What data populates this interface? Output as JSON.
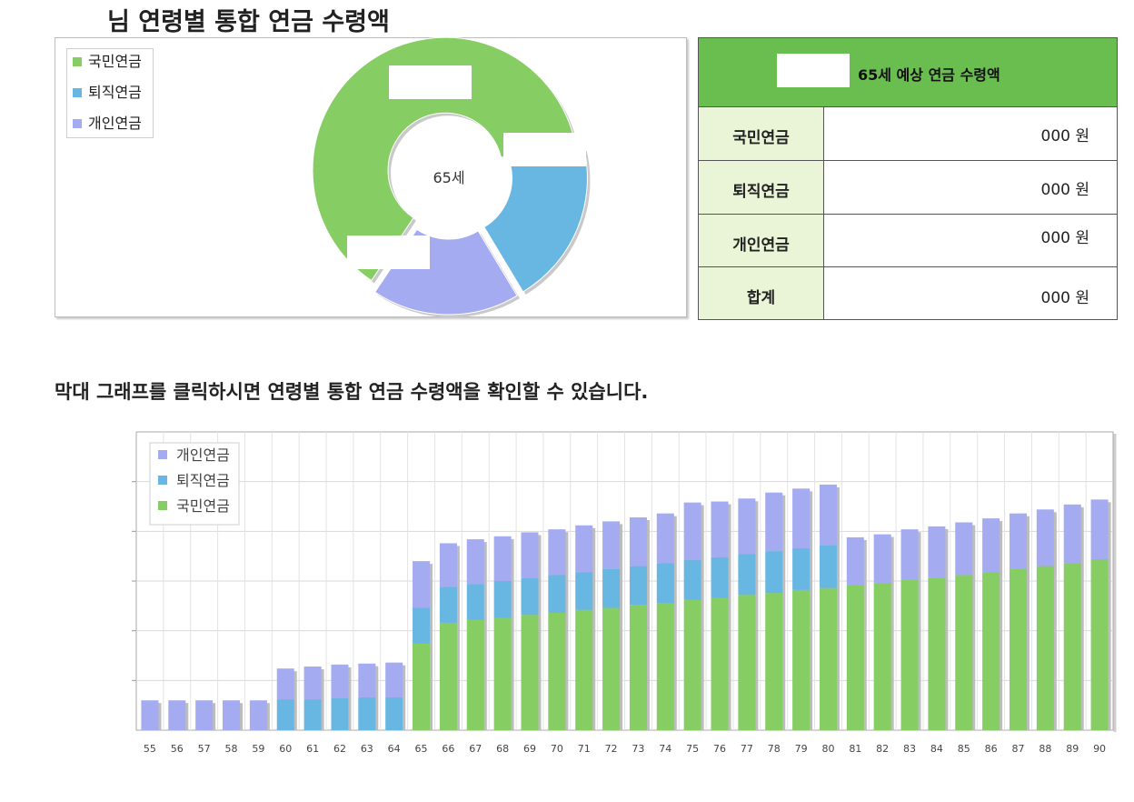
{
  "page_title": "님 연령별 통합 연금 수령액",
  "colors": {
    "national": "#86cd64",
    "retirement": "#68b6e2",
    "personal": "#a4abf1",
    "header_green": "#6abd4f",
    "label_bg": "#eaf5d8"
  },
  "donut": {
    "center_label": "65세",
    "legend": [
      "국민연금",
      "퇴직연금",
      "개인연금"
    ]
  },
  "table": {
    "header": "65세 예상 연금 수령액",
    "rows": [
      {
        "label": "국민연금",
        "value": "000 원"
      },
      {
        "label": "퇴직연금",
        "value": "000 원"
      },
      {
        "label": "개인연금",
        "value": "000 원"
      },
      {
        "label": "합계",
        "value": "000 원"
      }
    ]
  },
  "bar_caption": "막대 그래프를 클릭하시면 연령별 통합 연금 수령액을 확인할 수 있습니다.",
  "chart_data": [
    {
      "type": "pie",
      "categories": [
        "국민연금",
        "퇴직연금",
        "개인연금"
      ],
      "values": [
        62,
        20,
        18
      ],
      "center_label": "65세"
    },
    {
      "type": "bar",
      "stacked": true,
      "categories": [
        "55",
        "56",
        "57",
        "58",
        "59",
        "60",
        "61",
        "62",
        "63",
        "64",
        "65",
        "66",
        "67",
        "68",
        "69",
        "70",
        "71",
        "72",
        "73",
        "74",
        "75",
        "76",
        "77",
        "78",
        "79",
        "80",
        "81",
        "82",
        "83",
        "84",
        "85",
        "86",
        "87",
        "88",
        "89",
        "90"
      ],
      "series": [
        {
          "name": "국민연금",
          "values": [
            0,
            0,
            0,
            0,
            0,
            0,
            0,
            0,
            0,
            0,
            87,
            108,
            111,
            113,
            116,
            118,
            121,
            123,
            126,
            128,
            131,
            133,
            136,
            138,
            141,
            143,
            146,
            148,
            151,
            153,
            156,
            159,
            162,
            165,
            168,
            172
          ]
        },
        {
          "name": "퇴직연금",
          "values": [
            0,
            0,
            0,
            0,
            0,
            31,
            31,
            32,
            33,
            33,
            36,
            36,
            36,
            37,
            37,
            38,
            38,
            39,
            39,
            40,
            40,
            41,
            41,
            42,
            42,
            43,
            0,
            0,
            0,
            0,
            0,
            0,
            0,
            0,
            0,
            0
          ]
        },
        {
          "name": "개인연금",
          "values": [
            30,
            30,
            30,
            30,
            30,
            31,
            33,
            34,
            34,
            35,
            47,
            44,
            45,
            45,
            46,
            46,
            47,
            48,
            49,
            50,
            58,
            56,
            56,
            59,
            60,
            61,
            48,
            49,
            51,
            52,
            53,
            54,
            56,
            57,
            59,
            60
          ]
        }
      ],
      "ylim": [
        0,
        300
      ],
      "grid": true,
      "legend_placement": "top-left"
    }
  ]
}
